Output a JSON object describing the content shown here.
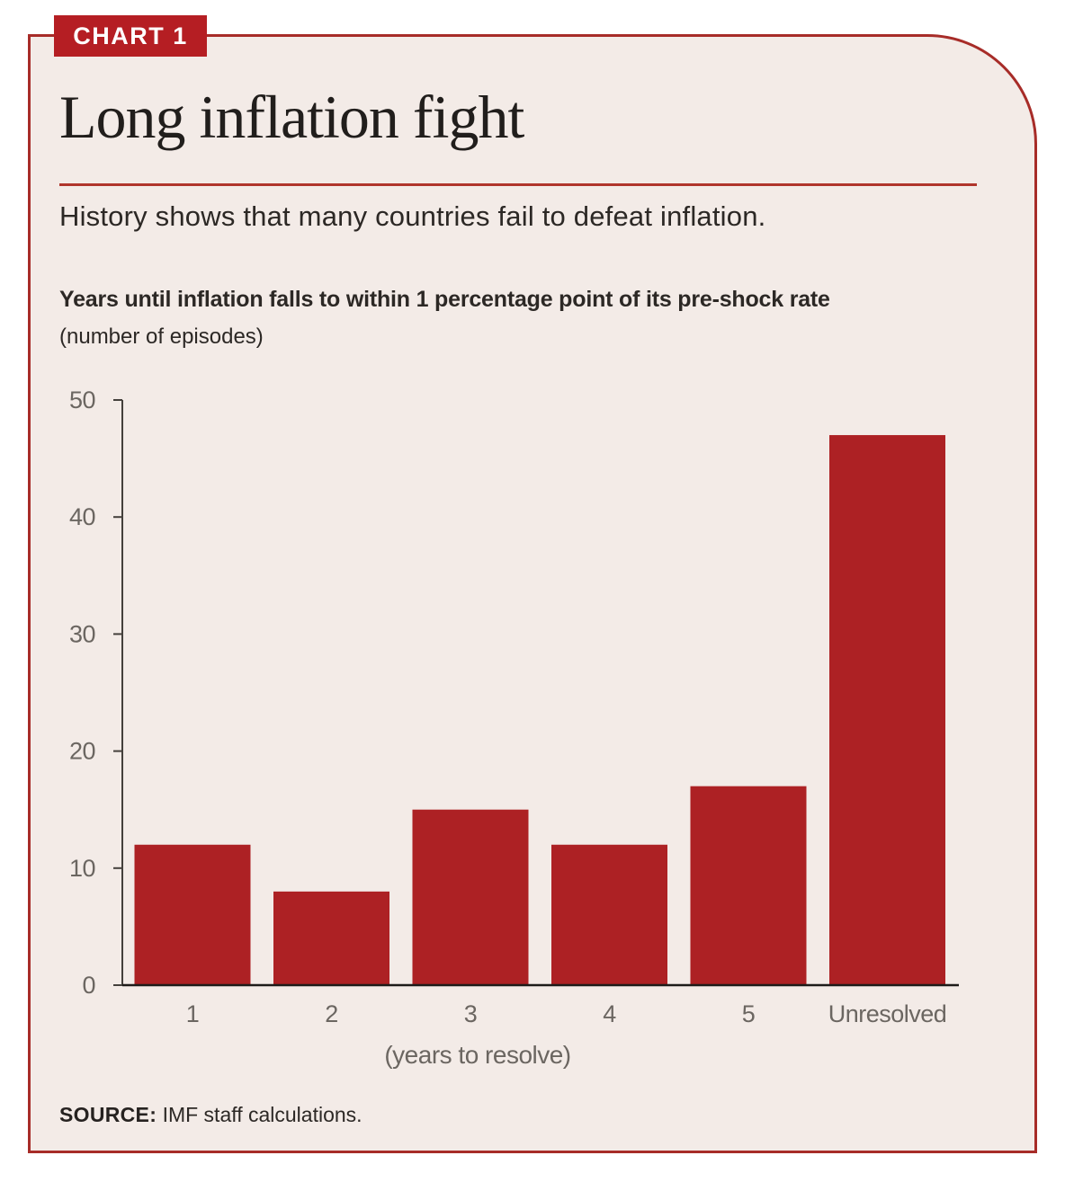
{
  "badge": {
    "label": "CHART 1"
  },
  "title": "Long inflation fight",
  "subtitle": "History shows that many countries fail to defeat inflation.",
  "chart_heading": "Years until inflation falls to within 1 percentage point of its pre-shock rate",
  "chart_units": "(number of episodes)",
  "source": {
    "label": "SOURCE:",
    "text": "IMF staff calculations."
  },
  "colors": {
    "bar": "#ad2124",
    "badge": "#b51e23",
    "border": "#a72c28",
    "rule": "#b0352c",
    "card_bg": "#f3ebe7",
    "axis": "#44403c",
    "baseline": "#1d1b19",
    "tick_label": "#6b6661"
  },
  "chart_data": {
    "type": "bar",
    "categories": [
      "1",
      "2",
      "3",
      "4",
      "5",
      "Unresolved"
    ],
    "values": [
      12,
      8,
      15,
      12,
      17,
      47
    ],
    "title": "Years until inflation falls to within 1 percentage point of its pre-shock rate",
    "xlabel": "(years to resolve)",
    "ylabel": "(number of episodes)",
    "ylim": [
      0,
      50
    ],
    "yticks": [
      0,
      10,
      20,
      30,
      40,
      50
    ],
    "grid": false,
    "legend": "none"
  }
}
